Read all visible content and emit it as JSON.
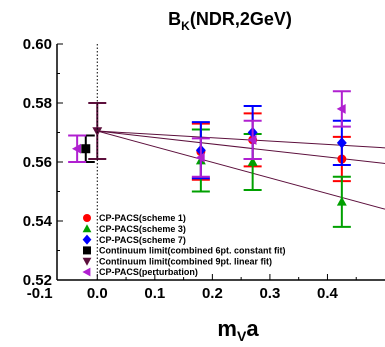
{
  "chart_data": {
    "type": "scatter",
    "title": {
      "main": "B",
      "sub": "K",
      "rest": "(NDR,2GeV)"
    },
    "xlabel": {
      "main": "m",
      "sub": "V",
      "rest": "a"
    },
    "ylabel": "",
    "xlim": [
      -0.07,
      0.5
    ],
    "ylim": [
      0.52,
      0.6
    ],
    "x_ticks": [
      "-0.1",
      "0.0",
      "0.1",
      "0.2",
      "0.3",
      "0.4"
    ],
    "x_tick_values": [
      -0.1,
      0.0,
      0.1,
      0.2,
      0.3,
      0.4
    ],
    "y_ticks": [
      "0.52",
      "0.54",
      "0.56",
      "0.58",
      "0.60"
    ],
    "y_tick_values": [
      0.52,
      0.54,
      0.56,
      0.58,
      0.6
    ],
    "grid": false,
    "vertical_reference": 0.0,
    "legend_position": "bottom-left",
    "colors": {
      "scheme1": "#ff0000",
      "scheme3": "#00a000",
      "scheme7": "#0000ff",
      "continuum_const": "#000000",
      "continuum_linear": "#5c0f3c",
      "perturbation": "#b020d0"
    },
    "series": [
      {
        "name": "CP-PACS(scheme 1)",
        "marker": "circle",
        "color": "#ff0000",
        "points": [
          {
            "x": 0.18,
            "y": 0.5635,
            "yerr": 0.0095
          },
          {
            "x": 0.27,
            "y": 0.5675,
            "yerr": 0.009
          },
          {
            "x": 0.425,
            "y": 0.561,
            "yerr": 0.0075
          }
        ]
      },
      {
        "name": "CP-PACS(scheme 3)",
        "marker": "triangle-up",
        "color": "#00a000",
        "points": [
          {
            "x": 0.18,
            "y": 0.5605,
            "yerr": 0.0105
          },
          {
            "x": 0.27,
            "y": 0.56,
            "yerr": 0.0095
          },
          {
            "x": 0.425,
            "y": 0.5465,
            "yerr": 0.0085
          }
        ]
      },
      {
        "name": "CP-PACS(scheme 7)",
        "marker": "diamond",
        "color": "#0000ff",
        "points": [
          {
            "x": 0.18,
            "y": 0.564,
            "yerr": 0.0095
          },
          {
            "x": 0.27,
            "y": 0.57,
            "yerr": 0.009
          },
          {
            "x": 0.425,
            "y": 0.5665,
            "yerr": 0.0075
          }
        ]
      },
      {
        "name": "Continuum limit(combined 6pt. constant fit)",
        "marker": "square",
        "color": "#000000",
        "points": [
          {
            "x": -0.02,
            "y": 0.5645,
            "yerr": 0.0045
          }
        ]
      },
      {
        "name": "Continuum limit(combined 9pt. linear fit)",
        "marker": "triangle-down",
        "color": "#5c0f3c",
        "points": [
          {
            "x": 0.0,
            "y": 0.5705,
            "yerr": 0.0095
          }
        ]
      },
      {
        "name": "CP-PACS(perturbation)",
        "marker": "triangle-left",
        "color": "#b020d0",
        "points": [
          {
            "x": -0.035,
            "y": 0.5645,
            "yerr": 0.0045
          },
          {
            "x": 0.18,
            "y": 0.5615,
            "yerr": 0.0065
          },
          {
            "x": 0.27,
            "y": 0.5675,
            "yerr": 0.0065
          },
          {
            "x": 0.425,
            "y": 0.578,
            "yerr": 0.006
          }
        ]
      }
    ],
    "fit_lines": [
      {
        "x": [
          0.0,
          0.5
        ],
        "y": [
          0.5705,
          0.5648
        ]
      },
      {
        "x": [
          0.0,
          0.5
        ],
        "y": [
          0.5705,
          0.5595
        ]
      },
      {
        "x": [
          0.0,
          0.5
        ],
        "y": [
          0.5705,
          0.544
        ]
      }
    ]
  }
}
